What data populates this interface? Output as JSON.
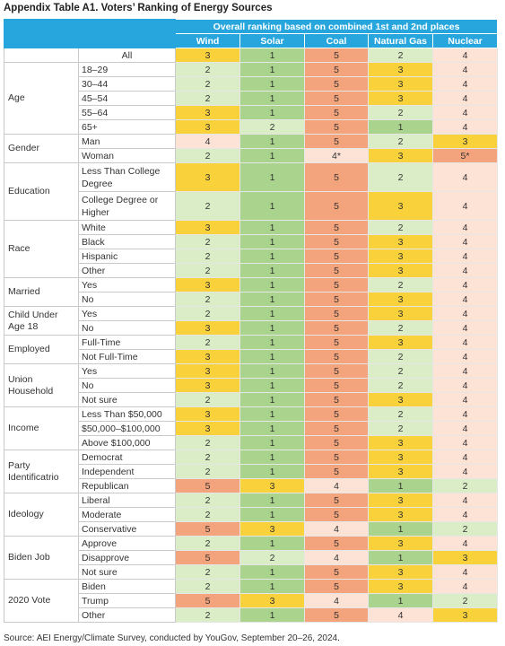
{
  "header": {
    "title": "Appendix Table A1. Voters’ Ranking of Energy Sources",
    "group_heading": "Overall ranking based on combined 1st and 2nd places",
    "columns": [
      "Wind",
      "Solar",
      "Coal",
      "Natural Gas",
      "Nuclear"
    ]
  },
  "table": {
    "all_row": {
      "label": "All",
      "values": [
        3,
        1,
        5,
        2,
        4
      ]
    },
    "groups": [
      {
        "label": "Age",
        "rows": [
          {
            "label": "18–29",
            "values": [
              2,
              1,
              5,
              3,
              4
            ]
          },
          {
            "label": "30–44",
            "values": [
              2,
              1,
              5,
              3,
              4
            ]
          },
          {
            "label": "45–54",
            "values": [
              2,
              1,
              5,
              3,
              4
            ]
          },
          {
            "label": "55–64",
            "values": [
              3,
              1,
              5,
              2,
              4
            ]
          },
          {
            "label": "65+",
            "values": [
              3,
              2,
              5,
              1,
              4
            ]
          }
        ]
      },
      {
        "label": "Gender",
        "rows": [
          {
            "label": "Man",
            "values": [
              4,
              1,
              5,
              2,
              3
            ]
          },
          {
            "label": "Woman",
            "values": [
              2,
              1,
              "4*",
              3,
              "5*"
            ]
          }
        ]
      },
      {
        "label": "Education",
        "rows": [
          {
            "label": "Less Than College Degree",
            "values": [
              3,
              1,
              5,
              2,
              4
            ]
          },
          {
            "label": "College Degree or Higher",
            "values": [
              2,
              1,
              5,
              3,
              4
            ]
          }
        ]
      },
      {
        "label": "Race",
        "rows": [
          {
            "label": "White",
            "values": [
              3,
              1,
              5,
              2,
              4
            ]
          },
          {
            "label": "Black",
            "values": [
              2,
              1,
              5,
              3,
              4
            ]
          },
          {
            "label": "Hispanic",
            "values": [
              2,
              1,
              5,
              3,
              4
            ]
          },
          {
            "label": "Other",
            "values": [
              2,
              1,
              5,
              3,
              4
            ]
          }
        ]
      },
      {
        "label": "Married",
        "rows": [
          {
            "label": "Yes",
            "values": [
              3,
              1,
              5,
              2,
              4
            ]
          },
          {
            "label": "No",
            "values": [
              2,
              1,
              5,
              3,
              4
            ]
          }
        ]
      },
      {
        "label": "Child Under Age 18",
        "rows": [
          {
            "label": "Yes",
            "values": [
              2,
              1,
              5,
              3,
              4
            ]
          },
          {
            "label": "No",
            "values": [
              3,
              1,
              5,
              2,
              4
            ]
          }
        ]
      },
      {
        "label": "Employed",
        "rows": [
          {
            "label": "Full-Time",
            "values": [
              2,
              1,
              5,
              3,
              4
            ]
          },
          {
            "label": "Not Full-Time",
            "values": [
              3,
              1,
              5,
              2,
              4
            ]
          }
        ]
      },
      {
        "label": "Union Household",
        "rows": [
          {
            "label": "Yes",
            "values": [
              3,
              1,
              5,
              2,
              4
            ]
          },
          {
            "label": "No",
            "values": [
              3,
              1,
              5,
              2,
              4
            ]
          },
          {
            "label": "Not sure",
            "values": [
              2,
              1,
              5,
              3,
              4
            ]
          }
        ]
      },
      {
        "label": "Income",
        "rows": [
          {
            "label": "Less Than $50,000",
            "values": [
              3,
              1,
              5,
              2,
              4
            ]
          },
          {
            "label": "$50,000–$100,000",
            "values": [
              3,
              1,
              5,
              2,
              4
            ]
          },
          {
            "label": "Above $100,000",
            "values": [
              2,
              1,
              5,
              3,
              4
            ]
          }
        ]
      },
      {
        "label": "Party Identificatrio",
        "rows": [
          {
            "label": "Democrat",
            "values": [
              2,
              1,
              5,
              3,
              4
            ]
          },
          {
            "label": "Independent",
            "values": [
              2,
              1,
              5,
              3,
              4
            ]
          },
          {
            "label": "Republican",
            "values": [
              5,
              3,
              4,
              1,
              2
            ]
          }
        ]
      },
      {
        "label": "Ideology",
        "rows": [
          {
            "label": "Liberal",
            "values": [
              2,
              1,
              5,
              3,
              4
            ]
          },
          {
            "label": "Moderate",
            "values": [
              2,
              1,
              5,
              3,
              4
            ]
          },
          {
            "label": "Conservative",
            "values": [
              5,
              3,
              4,
              1,
              2
            ]
          }
        ]
      },
      {
        "label": "Biden Job",
        "rows": [
          {
            "label": "Approve",
            "values": [
              2,
              1,
              5,
              3,
              4
            ]
          },
          {
            "label": "Disapprove",
            "values": [
              5,
              2,
              4,
              1,
              3
            ]
          },
          {
            "label": "Not sure",
            "values": [
              2,
              1,
              5,
              3,
              4
            ]
          }
        ]
      },
      {
        "label": "2020 Vote",
        "rows": [
          {
            "label": "Biden",
            "values": [
              2,
              1,
              5,
              3,
              4
            ]
          },
          {
            "label": "Trump",
            "values": [
              5,
              3,
              4,
              1,
              2
            ]
          },
          {
            "label": "Other",
            "values": [
              2,
              1,
              5,
              4,
              3
            ]
          }
        ]
      }
    ]
  },
  "footer": {
    "source": "Source: AEI Energy/Climate Survey, conducted by YouGov, September 20–26, 2024."
  }
}
